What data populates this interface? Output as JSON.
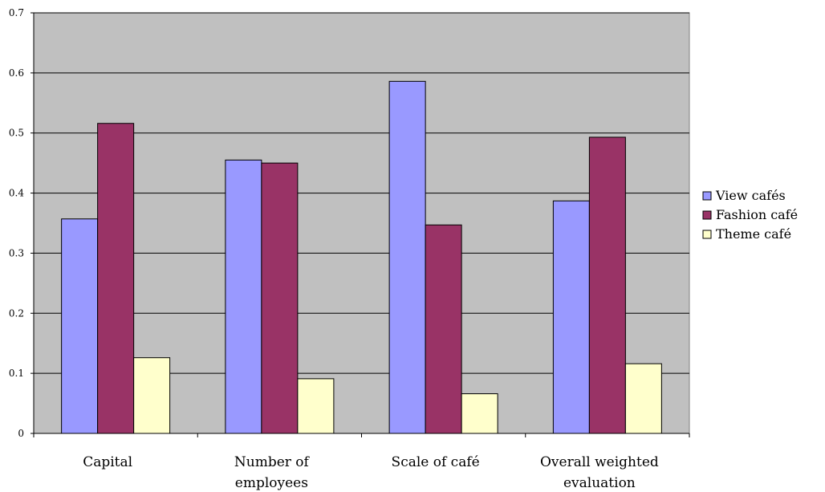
{
  "chart_data": {
    "type": "bar",
    "title": "",
    "xlabel": "",
    "ylabel": "",
    "ylim": [
      0,
      0.7
    ],
    "yticks": [
      "0",
      "0.1",
      "0.2",
      "0.3",
      "0.4",
      "0.5",
      "0.6",
      "0.7"
    ],
    "categories": [
      [
        "Capital"
      ],
      [
        "Number of",
        "employees"
      ],
      [
        "Scale of café"
      ],
      [
        "Overall weighted",
        "evaluation"
      ]
    ],
    "series": [
      {
        "name": "View cafés",
        "color": "#9999ff",
        "values": [
          0.357,
          0.455,
          0.586,
          0.387
        ]
      },
      {
        "name": "Fashion café",
        "color": "#993366",
        "values": [
          0.516,
          0.45,
          0.347,
          0.493
        ]
      },
      {
        "name": "Theme café",
        "color": "#ffffcc",
        "values": [
          0.126,
          0.091,
          0.066,
          0.116
        ]
      }
    ],
    "grid": true,
    "plot_background": "#c0c0c0",
    "legend_position": "right"
  }
}
